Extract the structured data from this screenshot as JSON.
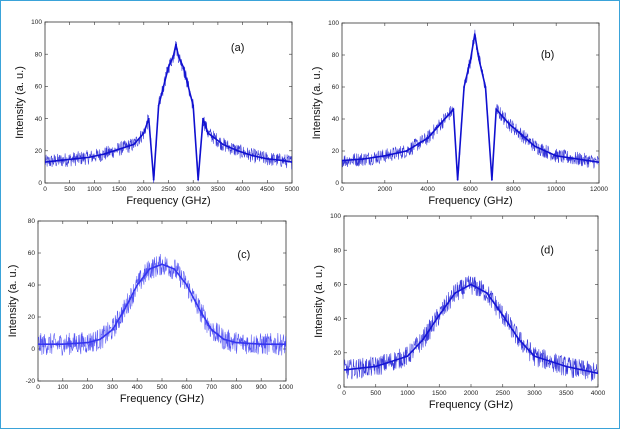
{
  "chart_data": [
    {
      "type": "line",
      "panel_label": "(a)",
      "xlabel": "Frequency (GHz)",
      "ylabel": "Intensity (a. u.)",
      "xlim": [
        0,
        5000
      ],
      "ylim": [
        0,
        100
      ],
      "xticks": [
        0,
        500,
        1000,
        1500,
        2000,
        2500,
        3000,
        3500,
        4000,
        4500,
        5000
      ],
      "yticks": [
        0,
        20,
        40,
        60,
        80,
        100
      ],
      "color": "#1010d0",
      "series": [
        {
          "x": [
            0,
            300,
            600,
            900,
            1200,
            1500,
            1800,
            2000,
            2100,
            2200,
            2300,
            2400,
            2500,
            2600,
            2650,
            2700,
            2800,
            2900,
            3000,
            3100,
            3200,
            3300,
            3600,
            3900,
            4200,
            4500,
            4800,
            5000
          ],
          "y": [
            13,
            14,
            15,
            16,
            18,
            21,
            24,
            31,
            40,
            2,
            48,
            60,
            72,
            79,
            86,
            79,
            72,
            60,
            48,
            2,
            40,
            31,
            24,
            20,
            17,
            15,
            14,
            13
          ]
        }
      ]
    },
    {
      "type": "line",
      "panel_label": "(b)",
      "xlabel": "Frequency (GHz)",
      "ylabel": "Intensity (a. u.)",
      "xlim": [
        0,
        12000
      ],
      "ylim": [
        0,
        100
      ],
      "xticks": [
        0,
        2000,
        4000,
        6000,
        8000,
        10000,
        12000
      ],
      "yticks": [
        0,
        20,
        40,
        60,
        80,
        100
      ],
      "color": "#1010d0",
      "series": [
        {
          "x": [
            0,
            1000,
            2000,
            3000,
            4000,
            4600,
            5200,
            5400,
            5700,
            6000,
            6200,
            6400,
            6700,
            7000,
            7200,
            7800,
            8400,
            9000,
            10000,
            11000,
            12000
          ],
          "y": [
            14,
            15,
            17,
            20,
            28,
            37,
            46,
            2,
            60,
            77,
            93,
            77,
            60,
            2,
            46,
            37,
            30,
            23,
            17,
            15,
            13
          ]
        }
      ]
    },
    {
      "type": "line",
      "panel_label": "(c)",
      "xlabel": "Frequency (GHz)",
      "ylabel": "Intensity (a. u.)",
      "xlim": [
        0,
        1000
      ],
      "ylim": [
        -20,
        80
      ],
      "xticks": [
        0,
        100,
        200,
        300,
        400,
        500,
        600,
        700,
        800,
        900,
        1000
      ],
      "yticks": [
        -20,
        0,
        20,
        40,
        60,
        80
      ],
      "color": "#3535f0",
      "series": [
        {
          "x": [
            0,
            100,
            200,
            250,
            300,
            350,
            400,
            450,
            500,
            550,
            600,
            650,
            700,
            750,
            800,
            900,
            1000
          ],
          "y": [
            3,
            3,
            4,
            6,
            12,
            25,
            40,
            50,
            53,
            50,
            40,
            25,
            12,
            6,
            4,
            3,
            3
          ]
        }
      ]
    },
    {
      "type": "line",
      "panel_label": "(d)",
      "xlabel": "Frequency (GHz)",
      "ylabel": "Intensity (a. u.)",
      "xlim": [
        0,
        4000
      ],
      "ylim": [
        0,
        100
      ],
      "xticks": [
        0,
        500,
        1000,
        1500,
        2000,
        2500,
        3000,
        3500,
        4000
      ],
      "yticks": [
        0,
        20,
        40,
        60,
        80,
        100
      ],
      "color": "#1515d5",
      "series": [
        {
          "x": [
            0,
            500,
            1000,
            1250,
            1500,
            1750,
            2000,
            2250,
            2500,
            2750,
            3000,
            3500,
            4000
          ],
          "y": [
            10,
            12,
            18,
            28,
            42,
            55,
            60,
            55,
            42,
            28,
            18,
            12,
            8
          ]
        }
      ]
    }
  ]
}
